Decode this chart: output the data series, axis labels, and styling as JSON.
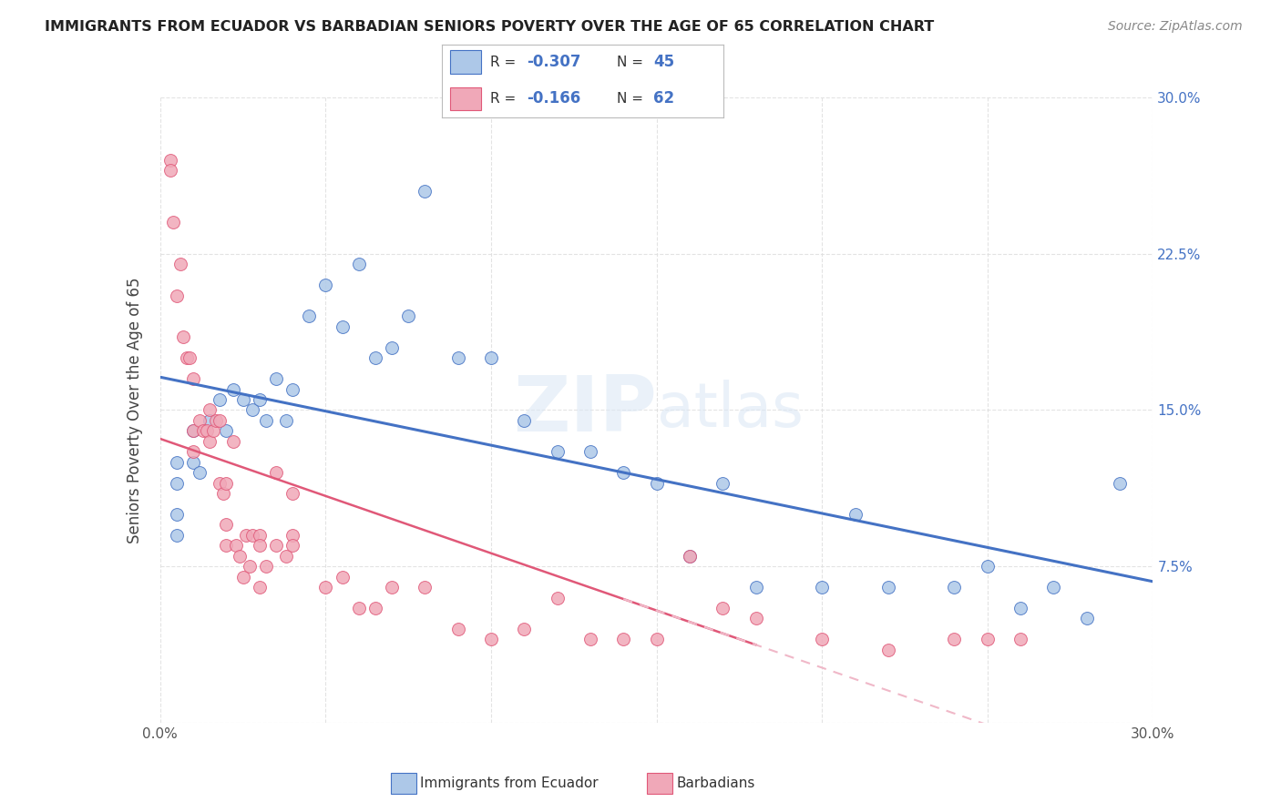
{
  "title": "IMMIGRANTS FROM ECUADOR VS BARBADIAN SENIORS POVERTY OVER THE AGE OF 65 CORRELATION CHART",
  "source": "Source: ZipAtlas.com",
  "ylabel": "Seniors Poverty Over the Age of 65",
  "xlim": [
    0.0,
    0.3
  ],
  "ylim": [
    0.0,
    0.3
  ],
  "xtick_positions": [
    0.0,
    0.05,
    0.1,
    0.15,
    0.2,
    0.25,
    0.3
  ],
  "xtick_labels": [
    "0.0%",
    "",
    "",
    "",
    "",
    "",
    "30.0%"
  ],
  "ytick_positions": [
    0.0,
    0.075,
    0.15,
    0.225,
    0.3
  ],
  "ytick_labels_right": [
    "",
    "7.5%",
    "15.0%",
    "22.5%",
    "30.0%"
  ],
  "legend_R1": "-0.307",
  "legend_N1": "45",
  "legend_R2": "-0.166",
  "legend_N2": "62",
  "watermark": "ZIPatlas",
  "blue_scatter_x": [
    0.005,
    0.005,
    0.005,
    0.005,
    0.01,
    0.01,
    0.012,
    0.015,
    0.018,
    0.02,
    0.022,
    0.025,
    0.028,
    0.03,
    0.032,
    0.035,
    0.038,
    0.04,
    0.045,
    0.05,
    0.055,
    0.06,
    0.065,
    0.07,
    0.075,
    0.08,
    0.09,
    0.1,
    0.11,
    0.12,
    0.13,
    0.14,
    0.15,
    0.16,
    0.17,
    0.18,
    0.2,
    0.21,
    0.22,
    0.24,
    0.25,
    0.26,
    0.27,
    0.28,
    0.29
  ],
  "blue_scatter_y": [
    0.125,
    0.115,
    0.1,
    0.09,
    0.14,
    0.125,
    0.12,
    0.145,
    0.155,
    0.14,
    0.16,
    0.155,
    0.15,
    0.155,
    0.145,
    0.165,
    0.145,
    0.16,
    0.195,
    0.21,
    0.19,
    0.22,
    0.175,
    0.18,
    0.195,
    0.255,
    0.175,
    0.175,
    0.145,
    0.13,
    0.13,
    0.12,
    0.115,
    0.08,
    0.115,
    0.065,
    0.065,
    0.1,
    0.065,
    0.065,
    0.075,
    0.055,
    0.065,
    0.05,
    0.115
  ],
  "pink_scatter_x": [
    0.003,
    0.003,
    0.004,
    0.005,
    0.006,
    0.007,
    0.008,
    0.009,
    0.01,
    0.01,
    0.01,
    0.012,
    0.013,
    0.014,
    0.015,
    0.015,
    0.016,
    0.017,
    0.018,
    0.018,
    0.019,
    0.02,
    0.02,
    0.02,
    0.022,
    0.023,
    0.024,
    0.025,
    0.026,
    0.027,
    0.028,
    0.03,
    0.03,
    0.03,
    0.032,
    0.035,
    0.035,
    0.038,
    0.04,
    0.04,
    0.04,
    0.05,
    0.055,
    0.06,
    0.065,
    0.07,
    0.08,
    0.09,
    0.1,
    0.11,
    0.12,
    0.13,
    0.14,
    0.15,
    0.16,
    0.17,
    0.18,
    0.2,
    0.22,
    0.24,
    0.25,
    0.26
  ],
  "pink_scatter_y": [
    0.27,
    0.265,
    0.24,
    0.205,
    0.22,
    0.185,
    0.175,
    0.175,
    0.165,
    0.14,
    0.13,
    0.145,
    0.14,
    0.14,
    0.15,
    0.135,
    0.14,
    0.145,
    0.145,
    0.115,
    0.11,
    0.115,
    0.095,
    0.085,
    0.135,
    0.085,
    0.08,
    0.07,
    0.09,
    0.075,
    0.09,
    0.09,
    0.085,
    0.065,
    0.075,
    0.12,
    0.085,
    0.08,
    0.11,
    0.09,
    0.085,
    0.065,
    0.07,
    0.055,
    0.055,
    0.065,
    0.065,
    0.045,
    0.04,
    0.045,
    0.06,
    0.04,
    0.04,
    0.04,
    0.08,
    0.055,
    0.05,
    0.04,
    0.035,
    0.04,
    0.04,
    0.04
  ],
  "blue_color": "#adc8e8",
  "pink_color": "#f0a8b8",
  "blue_line_color": "#4472c4",
  "pink_line_color": "#e05878",
  "pink_dash_color": "#f0b8c8",
  "background_color": "#ffffff",
  "grid_color": "#dddddd"
}
